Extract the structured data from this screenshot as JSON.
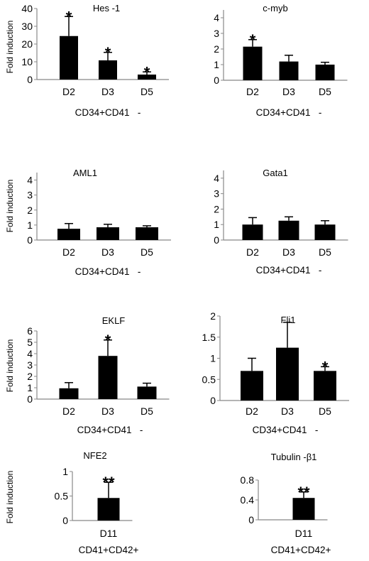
{
  "chart_data": [
    {
      "type": "bar",
      "title": "Hes -1",
      "ylabel": "Fold induction",
      "xlabel": "CD34+CD41   -",
      "categories": [
        "D2",
        "D3",
        "D5"
      ],
      "values": [
        24.5,
        10.8,
        2.8
      ],
      "errors": [
        11,
        4.5,
        1.5
      ],
      "significance": [
        "*",
        "*",
        "*"
      ],
      "ylim": [
        0,
        40
      ],
      "yticks": [
        "0",
        "10",
        "20",
        "30",
        "40"
      ]
    },
    {
      "type": "bar",
      "title": "c-myb",
      "ylabel": "",
      "xlabel": "CD34+CD41   -",
      "categories": [
        "D2",
        "D3",
        "D5"
      ],
      "values": [
        2.15,
        1.2,
        1.0
      ],
      "errors": [
        0.45,
        0.4,
        0.15
      ],
      "significance": [
        "*",
        "",
        ""
      ],
      "ylim": [
        0,
        4.5
      ],
      "yticks": [
        "0",
        "1",
        "2",
        "3",
        "4"
      ]
    },
    {
      "type": "bar",
      "title": "AML1",
      "ylabel": "Fold induction",
      "xlabel": "CD34+CD41   -",
      "categories": [
        "D2",
        "D3",
        "D5"
      ],
      "values": [
        0.75,
        0.85,
        0.85
      ],
      "errors": [
        0.35,
        0.2,
        0.1
      ],
      "significance": [
        "",
        "",
        ""
      ],
      "ylim": [
        0,
        4.5
      ],
      "yticks": [
        "0",
        "1",
        "2",
        "3",
        "4"
      ]
    },
    {
      "type": "bar",
      "title": "Gata1",
      "ylabel": "",
      "xlabel": "CD34+CD41   -",
      "categories": [
        "D2",
        "D3",
        "D5"
      ],
      "values": [
        1.0,
        1.25,
        1.0
      ],
      "errors": [
        0.45,
        0.25,
        0.25
      ],
      "significance": [
        "",
        "",
        ""
      ],
      "ylim": [
        0,
        4.5
      ],
      "yticks": [
        "0",
        "1",
        "2",
        "3",
        "4"
      ]
    },
    {
      "type": "bar",
      "title": "EKLF",
      "ylabel": "Fold induction",
      "xlabel": "CD34+CD41   -",
      "categories": [
        "D2",
        "D3",
        "D5"
      ],
      "values": [
        0.95,
        3.8,
        1.1
      ],
      "errors": [
        0.5,
        1.4,
        0.3
      ],
      "significance": [
        "",
        "*",
        ""
      ],
      "ylim": [
        0,
        6
      ],
      "yticks": [
        "0",
        "1",
        "2",
        "3",
        "4",
        "5",
        "6"
      ]
    },
    {
      "type": "bar",
      "title": "Fli1",
      "ylabel": "",
      "xlabel": "CD34+CD41   -",
      "categories": [
        "D2",
        "D3",
        "D5"
      ],
      "values": [
        0.7,
        1.25,
        0.7
      ],
      "errors": [
        0.3,
        0.6,
        0.1
      ],
      "significance": [
        "",
        "",
        "*"
      ],
      "ylim": [
        0,
        2
      ],
      "yticks": [
        "0",
        "0.5",
        "1",
        "1.5",
        "2"
      ]
    },
    {
      "type": "bar",
      "title": "NFE2",
      "ylabel": "Fold induction",
      "xlabel": "CD41+CD42+",
      "categories": [
        "D11"
      ],
      "values": [
        0.46
      ],
      "errors": [
        0.32
      ],
      "significance": [
        "**"
      ],
      "ylim": [
        0,
        1
      ],
      "yticks": [
        "0",
        "0.5",
        "1"
      ]
    },
    {
      "type": "bar",
      "title": "Tubulin -β1",
      "ylabel": "",
      "xlabel": "CD41+CD42+",
      "categories": [
        "D11"
      ],
      "values": [
        0.44
      ],
      "errors": [
        0.12
      ],
      "significance": [
        "**"
      ],
      "ylim": [
        0,
        0.8
      ],
      "yticks": [
        "0",
        "0.4",
        "0.8"
      ]
    }
  ]
}
